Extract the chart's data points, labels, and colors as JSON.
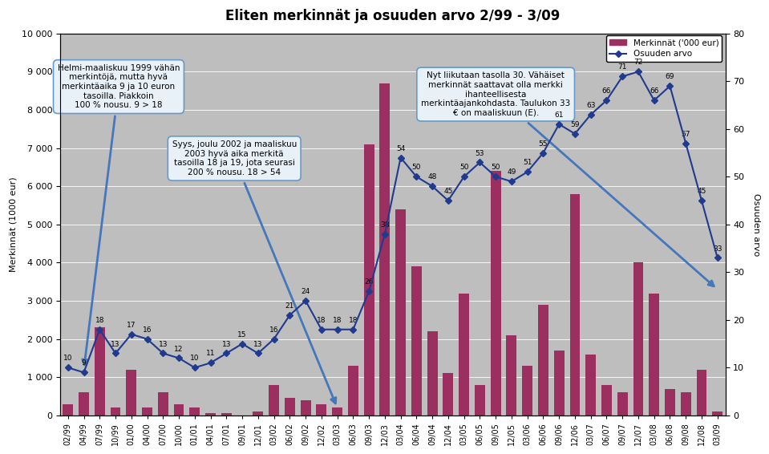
{
  "title": "Eliten merkinnät ja osuuden arvo 2/99 - 3/09",
  "categories": [
    "02/99",
    "04/99",
    "07/99",
    "10/99",
    "01/00",
    "04/00",
    "07/00",
    "10/00",
    "01/01",
    "04/01",
    "07/01",
    "09/01",
    "12/01",
    "03/02",
    "06/02",
    "09/02",
    "12/02",
    "03/03",
    "06/03",
    "09/03",
    "12/03",
    "03/04",
    "06/04",
    "09/04",
    "12/04",
    "03/05",
    "06/05",
    "09/05",
    "12/05",
    "03/06",
    "06/06",
    "09/06",
    "12/06",
    "03/07",
    "06/07",
    "09/07",
    "12/07",
    "03/08",
    "06/08",
    "09/08",
    "12/08",
    "03/09"
  ],
  "bar_values": [
    300,
    600,
    2300,
    200,
    1200,
    200,
    600,
    300,
    200,
    50,
    50,
    0,
    100,
    800,
    450,
    400,
    300,
    200,
    1300,
    7100,
    8700,
    5400,
    3900,
    2200,
    1100,
    3200,
    800,
    6400,
    2100,
    1300,
    2900,
    1700,
    5800,
    1600,
    800,
    600,
    4000,
    3200,
    700,
    600,
    1200,
    100
  ],
  "line_values": [
    10,
    9,
    18,
    13,
    17,
    16,
    13,
    12,
    10,
    11,
    13,
    15,
    13,
    16,
    21,
    24,
    18,
    18,
    18,
    26,
    38,
    54,
    50,
    48,
    45,
    50,
    53,
    50,
    49,
    51,
    55,
    61,
    59,
    63,
    66,
    71,
    72,
    66,
    69,
    57,
    45,
    33
  ],
  "bar_color": "#9B3060",
  "line_color": "#1F3A8F",
  "plot_bg_color": "#BEBEBE",
  "fig_bg_color": "#FFFFFF",
  "ylabel_left": "Merkinnät (1000 eur)",
  "ylabel_right": "Osuuden arvo",
  "ylim_left": [
    0,
    10000
  ],
  "ylim_right": [
    0,
    80
  ],
  "yticks_left": [
    0,
    1000,
    2000,
    3000,
    4000,
    5000,
    6000,
    7000,
    8000,
    9000,
    10000
  ],
  "yticks_right": [
    0,
    10,
    20,
    30,
    40,
    50,
    60,
    70,
    80
  ],
  "legend_bar_label": "Merkinnät ('000 eur)",
  "legend_line_label": "Osuuden arvo",
  "annot1_text": "Helmi-maaliskuu 1999 vähän\nmerkintöjä, mutta hyvä\nmerkintäaika 9 ja 10 euron\ntasoilla. Piakkoin\n100 % nousu. 9 > 18",
  "annot2_text": "Syys, joulu 2002 ja maaliskuu\n2003 hyvä aika merkitä\ntasoilla 18 ja 19, jota seurasi\n200 % nousu. 18 > 54",
  "annot3_text": "Nyt liikutaan tasolla 30. Vähäiset\nmerkinnät saattavat olla merkki\nihanteellisesta\nmerkintäajankohdasta. Taulukon 33\n€ on maaliskuun (E).",
  "annot_facecolor": "#E8F0F8",
  "annot_edgecolor": "#6699CC",
  "arrow_color": "#4477BB"
}
